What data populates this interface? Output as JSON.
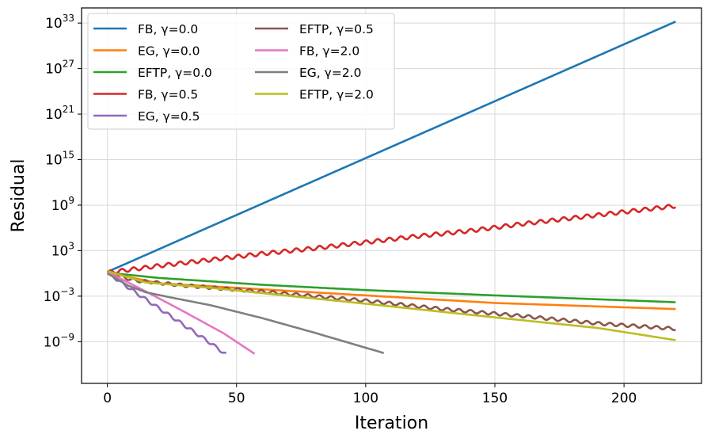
{
  "chart_data": {
    "type": "line",
    "title": "",
    "xlabel": "Iteration",
    "ylabel": "Residual",
    "yscale": "log",
    "xlim": [
      -10,
      230
    ],
    "ylim_log10": [
      -14.5,
      35
    ],
    "grid": true,
    "legend_position": "top-left",
    "legend_columns": 2,
    "x_ticks": [
      {
        "value": 0,
        "label": "0"
      },
      {
        "value": 50,
        "label": "50"
      },
      {
        "value": 100,
        "label": "100"
      },
      {
        "value": 150,
        "label": "150"
      },
      {
        "value": 200,
        "label": "200"
      }
    ],
    "y_ticks": [
      {
        "exp": -9,
        "base": "10",
        "exponent": "−9"
      },
      {
        "exp": -3,
        "base": "10",
        "exponent": "−3"
      },
      {
        "exp": 3,
        "base": "10",
        "exponent": "3"
      },
      {
        "exp": 9,
        "base": "10",
        "exponent": "9"
      },
      {
        "exp": 15,
        "base": "10",
        "exponent": "15"
      },
      {
        "exp": 21,
        "base": "10",
        "exponent": "21"
      },
      {
        "exp": 27,
        "base": "10",
        "exponent": "27"
      },
      {
        "exp": 33,
        "base": "10",
        "exponent": "33"
      }
    ],
    "series": [
      {
        "name": "FB, γ=0.0",
        "color": "#1f77b4",
        "x": [
          0,
          220
        ],
        "log10_y": [
          0.2,
          33.2
        ],
        "wiggle": 0
      },
      {
        "name": "EG, γ=0.0",
        "color": "#ff7f0e",
        "x": [
          0,
          20,
          60,
          100,
          150,
          220
        ],
        "log10_y": [
          0.1,
          -1.3,
          -2.1,
          -2.9,
          -3.9,
          -4.7
        ],
        "wiggle": 0
      },
      {
        "name": "EFTP, γ=0.0",
        "color": "#2ca02c",
        "x": [
          0,
          20,
          60,
          100,
          150,
          220
        ],
        "log10_y": [
          0.1,
          -0.6,
          -1.5,
          -2.2,
          -2.9,
          -3.8
        ],
        "wiggle": 0
      },
      {
        "name": "FB, γ=0.5",
        "color": "#d62728",
        "x": [
          0,
          20,
          40,
          60,
          80,
          100,
          120,
          140,
          160,
          180,
          200,
          220
        ],
        "log10_y": [
          0.1,
          1.0,
          1.8,
          2.6,
          3.3,
          4.1,
          4.9,
          5.6,
          6.5,
          7.3,
          8.1,
          8.9
        ],
        "wiggle": 0.25
      },
      {
        "name": "EG, γ=0.5",
        "color": "#9467bd",
        "x": [
          0,
          10,
          20,
          30,
          40,
          46
        ],
        "log10_y": [
          0.1,
          -2.3,
          -4.6,
          -6.9,
          -9.2,
          -10.7
        ],
        "wiggle": 0.2
      },
      {
        "name": "EFTP, γ=0.5",
        "color": "#8c564b",
        "x": [
          0,
          10,
          30,
          60,
          100,
          130,
          160,
          190,
          220
        ],
        "log10_y": [
          0.2,
          -0.9,
          -1.6,
          -2.4,
          -3.6,
          -4.7,
          -5.6,
          -6.6,
          -7.3
        ],
        "wiggle": 0.2
      },
      {
        "name": "FB, γ=2.0",
        "color": "#e377c2",
        "x": [
          0,
          15,
          30,
          45,
          57
        ],
        "log10_y": [
          0.2,
          -2.4,
          -5.1,
          -7.9,
          -10.6
        ],
        "wiggle": 0
      },
      {
        "name": "EG, γ=2.0",
        "color": "#7f7f7f",
        "x": [
          0,
          8,
          15,
          25,
          40,
          60,
          80,
          107
        ],
        "log10_y": [
          0.0,
          -1.6,
          -2.5,
          -3.2,
          -4.2,
          -5.9,
          -7.8,
          -10.5
        ],
        "wiggle": 0
      },
      {
        "name": "EFTP, γ=2.0",
        "color": "#bcbd22",
        "x": [
          0,
          15,
          40,
          60,
          100,
          150,
          190,
          220
        ],
        "log10_y": [
          0.3,
          -1.2,
          -1.9,
          -2.6,
          -4.0,
          -5.8,
          -7.2,
          -8.8
        ],
        "wiggle": 0
      }
    ]
  }
}
